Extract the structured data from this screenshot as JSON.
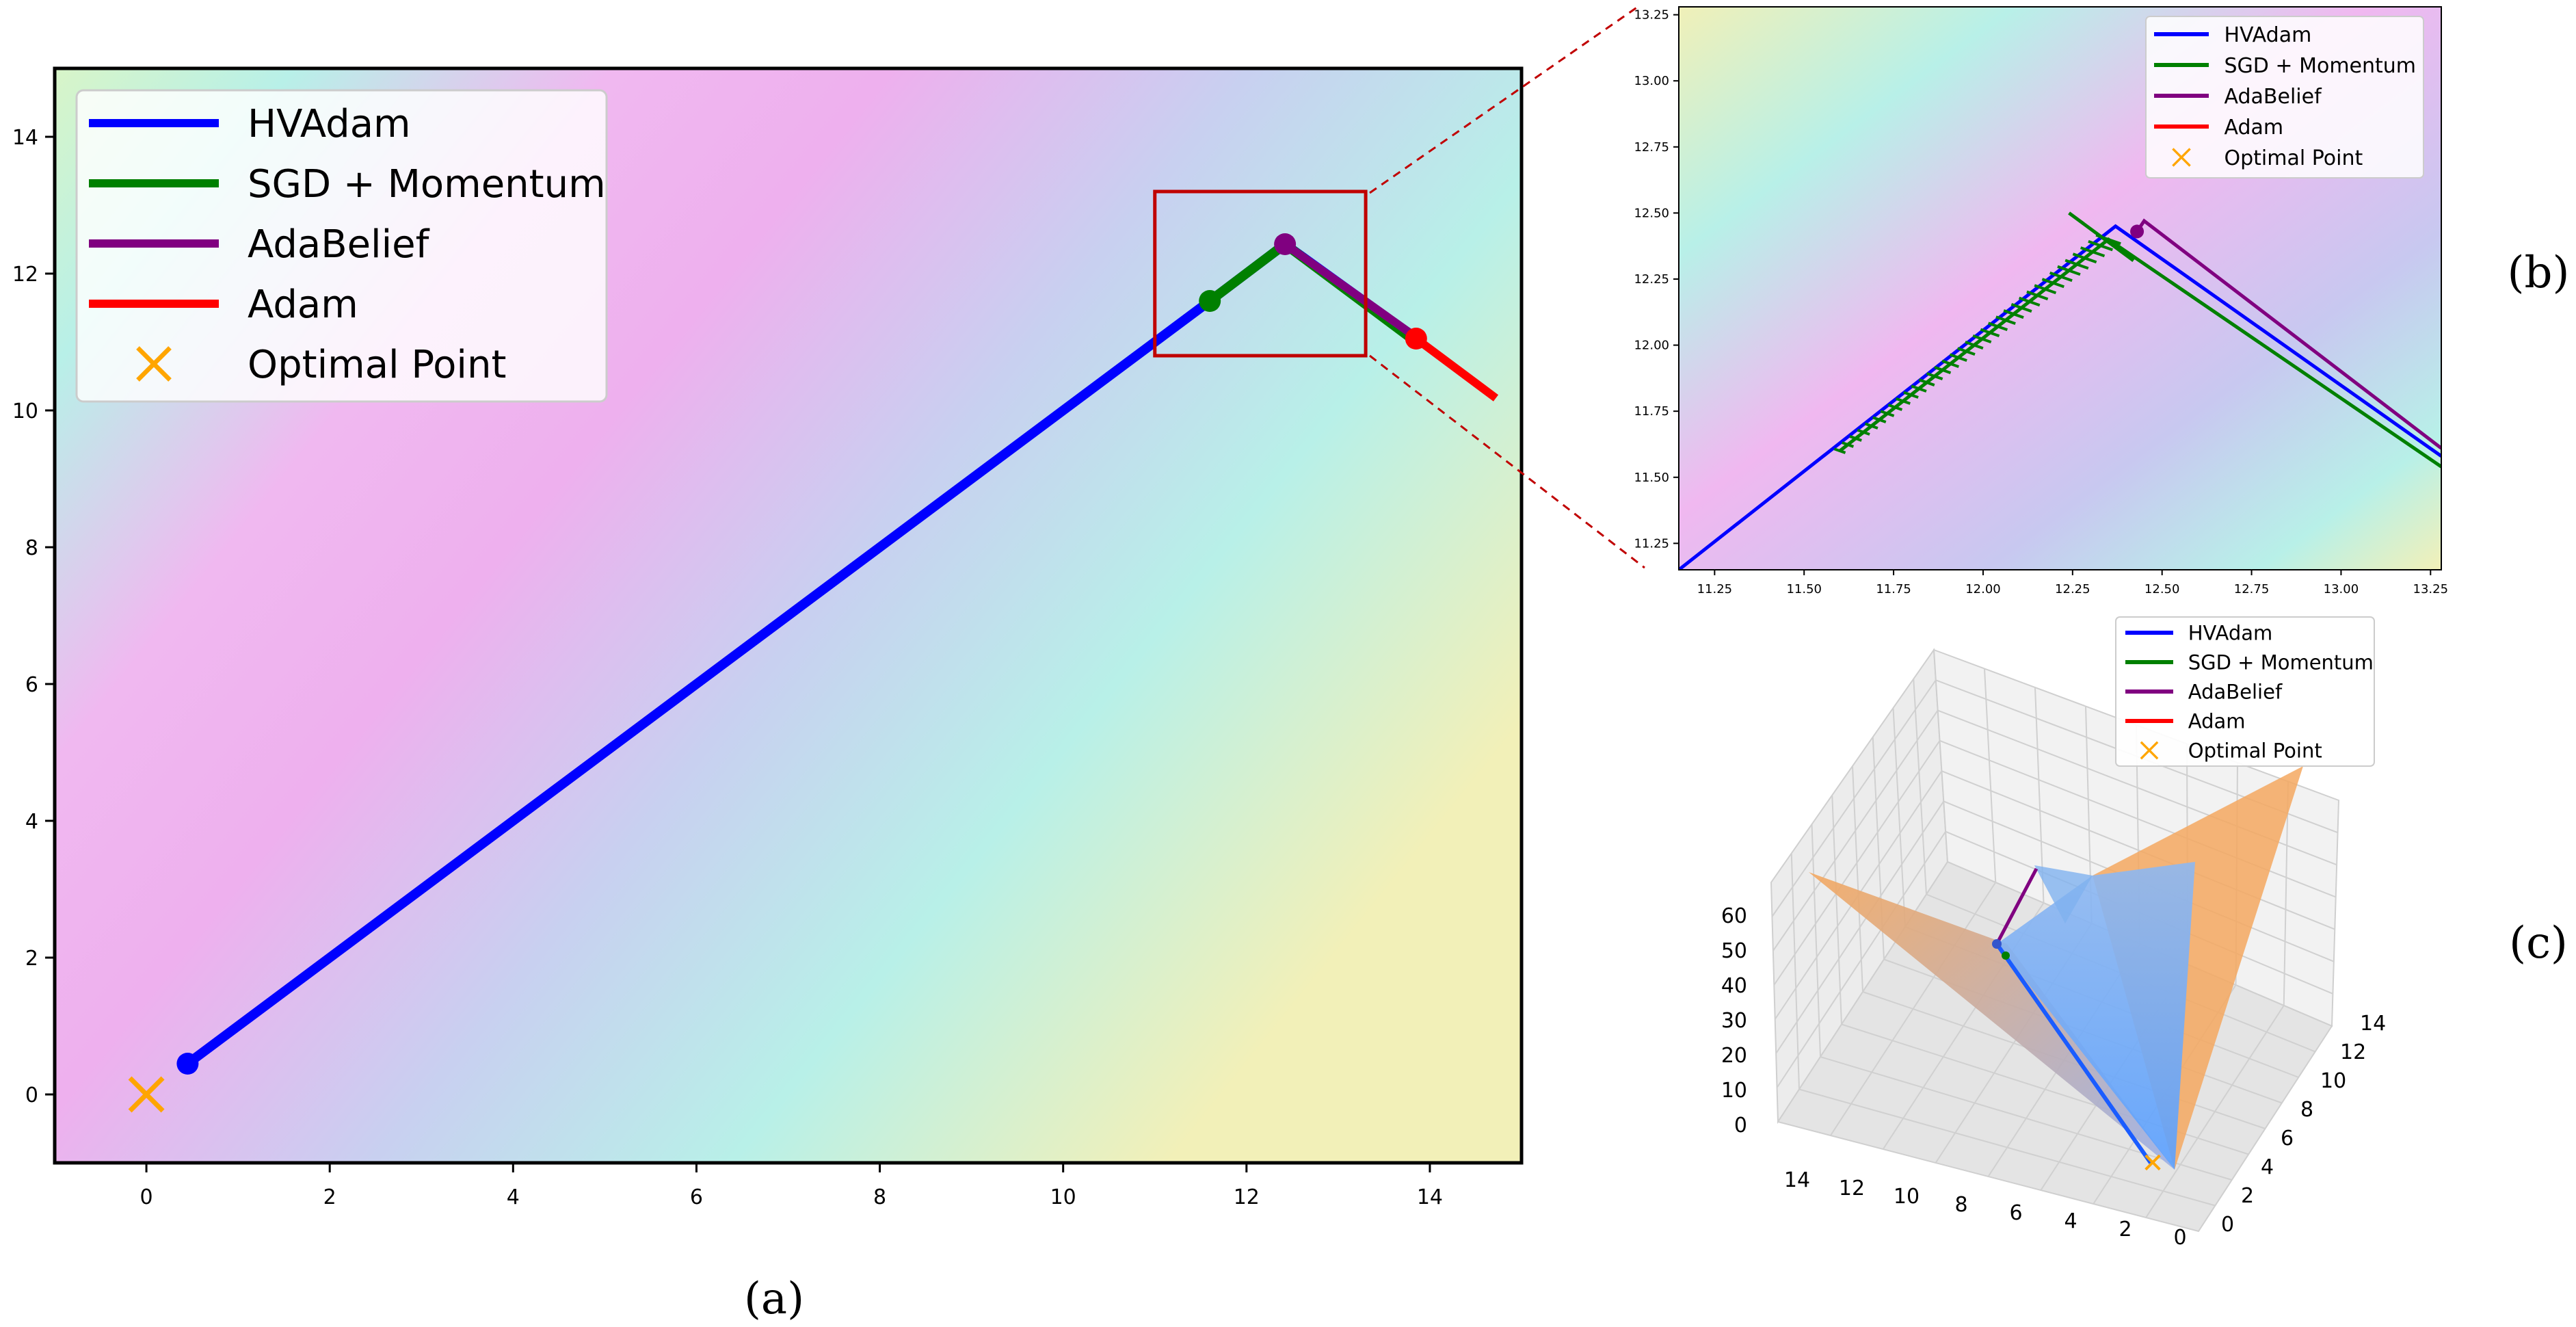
{
  "colors": {
    "hvadam": "#0000ff",
    "sgd": "#008000",
    "adabelief": "#800080",
    "adam": "#ff0000",
    "optimal": "#ffa500",
    "zoom_box": "#c00000",
    "surface_orange": "#f4a460",
    "surface_blue": "#5fa8ff"
  },
  "legend": [
    {
      "label": "HVAdam",
      "color": "#0000ff",
      "marker": "line"
    },
    {
      "label": "SGD + Momentum",
      "color": "#008000",
      "marker": "line"
    },
    {
      "label": "AdaBelief",
      "color": "#800080",
      "marker": "line"
    },
    {
      "label": "Adam",
      "color": "#ff0000",
      "marker": "line"
    },
    {
      "label": "Optimal Point",
      "color": "#ffa500",
      "marker": "x"
    }
  ],
  "captions": {
    "a": "(a)",
    "b": "(b)",
    "c": "(c)"
  },
  "chart_data": [
    {
      "id": "a",
      "type": "line",
      "title": "",
      "xlabel": "",
      "ylabel": "",
      "xlim": [
        -1,
        15
      ],
      "ylim": [
        -1,
        15
      ],
      "xticks": [
        "0",
        "2",
        "4",
        "6",
        "8",
        "10",
        "12",
        "14"
      ],
      "yticks": [
        "0",
        "2",
        "4",
        "6",
        "8",
        "10",
        "12",
        "14"
      ],
      "legend_position": "top-left",
      "background": "contour gradient (pink / cyan / yellow)",
      "zoom_box": {
        "x": [
          11,
          13.3
        ],
        "y": [
          10.8,
          13.2
        ]
      },
      "series": [
        {
          "name": "HVAdam",
          "points": [
            [
              0.45,
              0.45
            ],
            [
              11.6,
              11.6
            ],
            [
              12.42,
              12.43
            ],
            [
              13.85,
              11.05
            ]
          ],
          "end_marker": [
            0.45,
            0.45
          ]
        },
        {
          "name": "SGD + Momentum",
          "points": [
            [
              11.6,
              11.6
            ],
            [
              12.42,
              12.43
            ],
            [
              13.85,
              11.0
            ]
          ],
          "end_marker": [
            11.6,
            11.6
          ]
        },
        {
          "name": "AdaBelief",
          "points": [
            [
              12.42,
              12.43
            ],
            [
              13.85,
              11.07
            ]
          ],
          "end_marker": [
            12.42,
            12.43
          ]
        },
        {
          "name": "Adam",
          "points": [
            [
              13.85,
              11.05
            ],
            [
              14.72,
              10.18
            ]
          ],
          "end_marker": [
            13.85,
            11.05
          ]
        },
        {
          "name": "Optimal Point",
          "points": [
            [
              0,
              0
            ]
          ],
          "marker": "x"
        }
      ]
    },
    {
      "id": "b",
      "type": "line",
      "title": "",
      "xlabel": "",
      "ylabel": "",
      "xlim": [
        11.15,
        13.28
      ],
      "ylim": [
        11.15,
        13.28
      ],
      "xticks": [
        "11.25",
        "11.50",
        "11.75",
        "12.00",
        "12.25",
        "12.50",
        "12.75",
        "13.00",
        "13.25"
      ],
      "yticks": [
        "11.25",
        "11.50",
        "11.75",
        "12.00",
        "12.25",
        "12.50",
        "12.75",
        "13.00",
        "13.25"
      ],
      "legend_position": "top-right",
      "series": [
        {
          "name": "HVAdam",
          "points": [
            [
              11.15,
              11.15
            ],
            [
              12.37,
              12.45
            ],
            [
              13.28,
              11.58
            ]
          ]
        },
        {
          "name": "SGD + Momentum",
          "points": [
            [
              11.6,
              11.6
            ],
            [
              12.35,
              12.4
            ],
            [
              13.28,
              11.54
            ]
          ],
          "oscillation": true
        },
        {
          "name": "AdaBelief",
          "points": [
            [
              12.43,
              12.43
            ],
            [
              12.45,
              12.47
            ],
            [
              13.28,
              11.61
            ]
          ],
          "end_marker": [
            12.43,
            12.43
          ]
        },
        {
          "name": "Adam",
          "points": []
        }
      ]
    },
    {
      "id": "c",
      "type": "surface3d",
      "title": "",
      "zticks": [
        "0",
        "10",
        "20",
        "30",
        "40",
        "50",
        "60"
      ],
      "xticks": [
        "14",
        "12",
        "10",
        "8",
        "6",
        "4",
        "2",
        "0"
      ],
      "yticks": [
        "0",
        "2",
        "4",
        "6",
        "8",
        "10",
        "12",
        "14"
      ],
      "legend_position": "top-right",
      "series": [
        "HVAdam",
        "SGD + Momentum",
        "AdaBelief",
        "Adam",
        "Optimal Point"
      ]
    }
  ]
}
